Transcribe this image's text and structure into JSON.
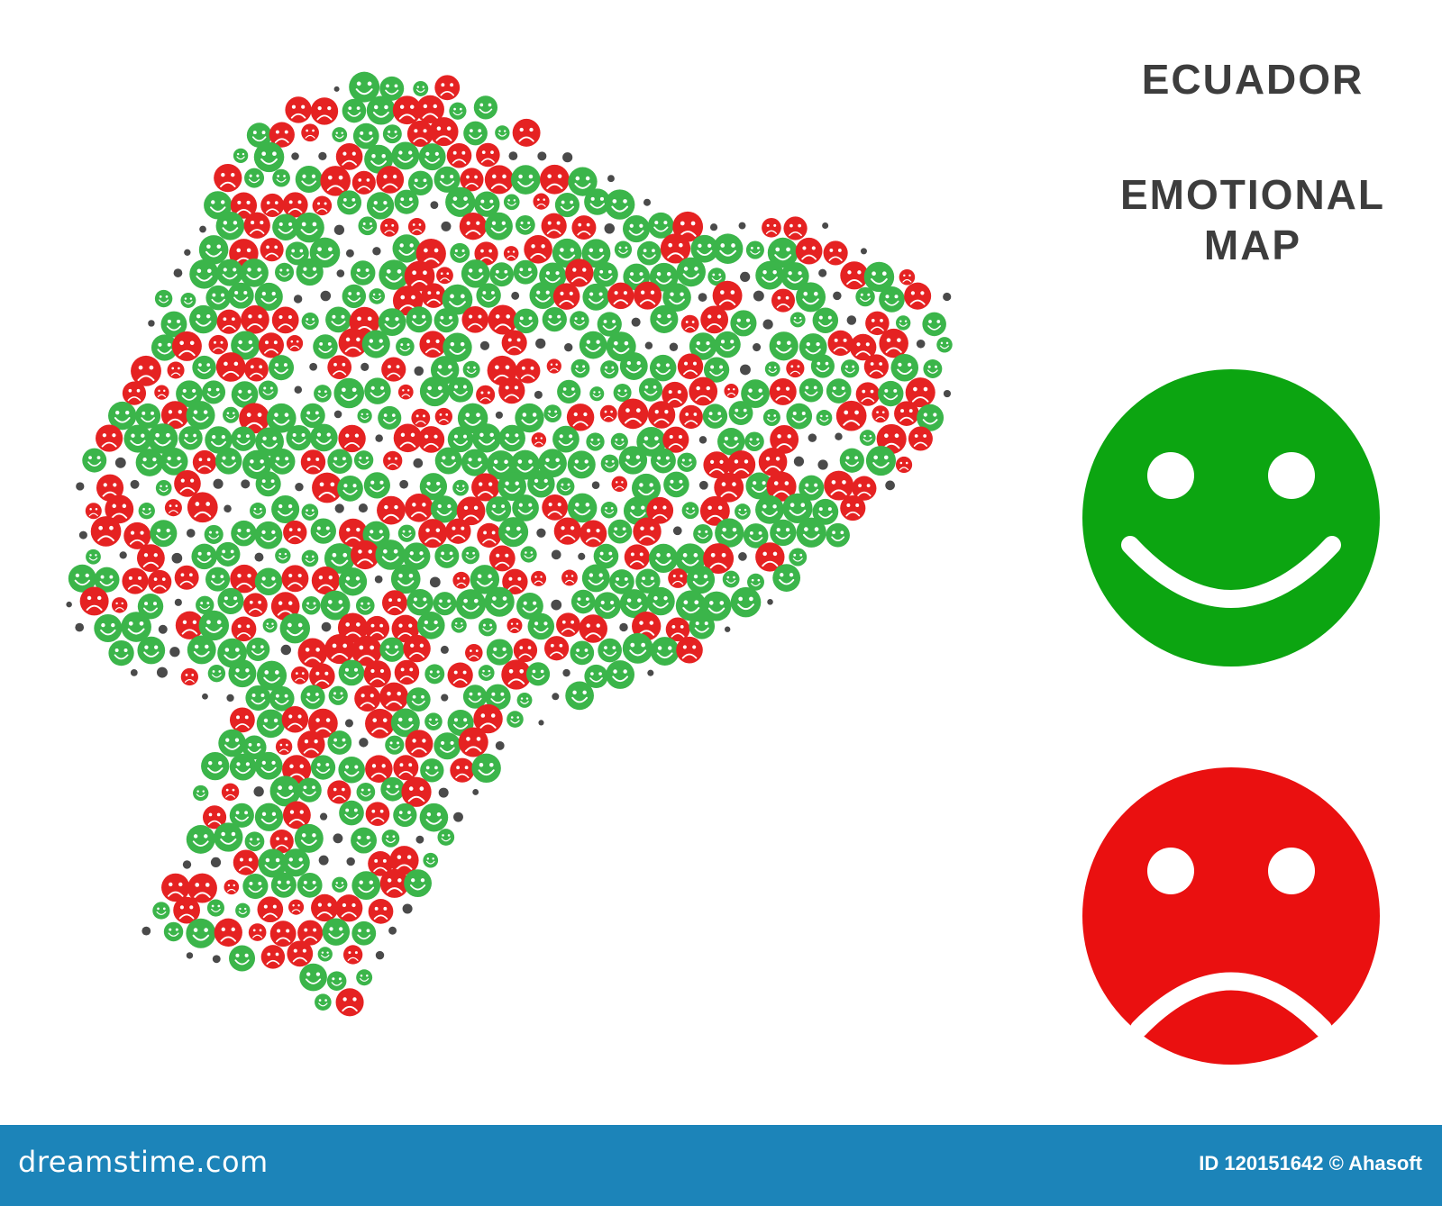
{
  "title": {
    "country": "ECUADOR",
    "subtitle_line1": "EMOTIONAL",
    "subtitle_line2": "MAP"
  },
  "legend": [
    {
      "mood": "happy",
      "icon": "happy-face-icon",
      "color": "#0ca511"
    },
    {
      "mood": "sad",
      "icon": "sad-face-icon",
      "color": "#ea1010"
    }
  ],
  "map": {
    "region": "Ecuador",
    "happy_color": "#3bb54a",
    "sad_color": "#e52222",
    "dot_color": "#4a4a4a"
  },
  "watermark": {
    "text": "dreamstime.com"
  },
  "footer": {
    "logo": "dreamstime.com",
    "credit": "ID 120151642 © Ahasoft",
    "background": "#1c84b9"
  }
}
